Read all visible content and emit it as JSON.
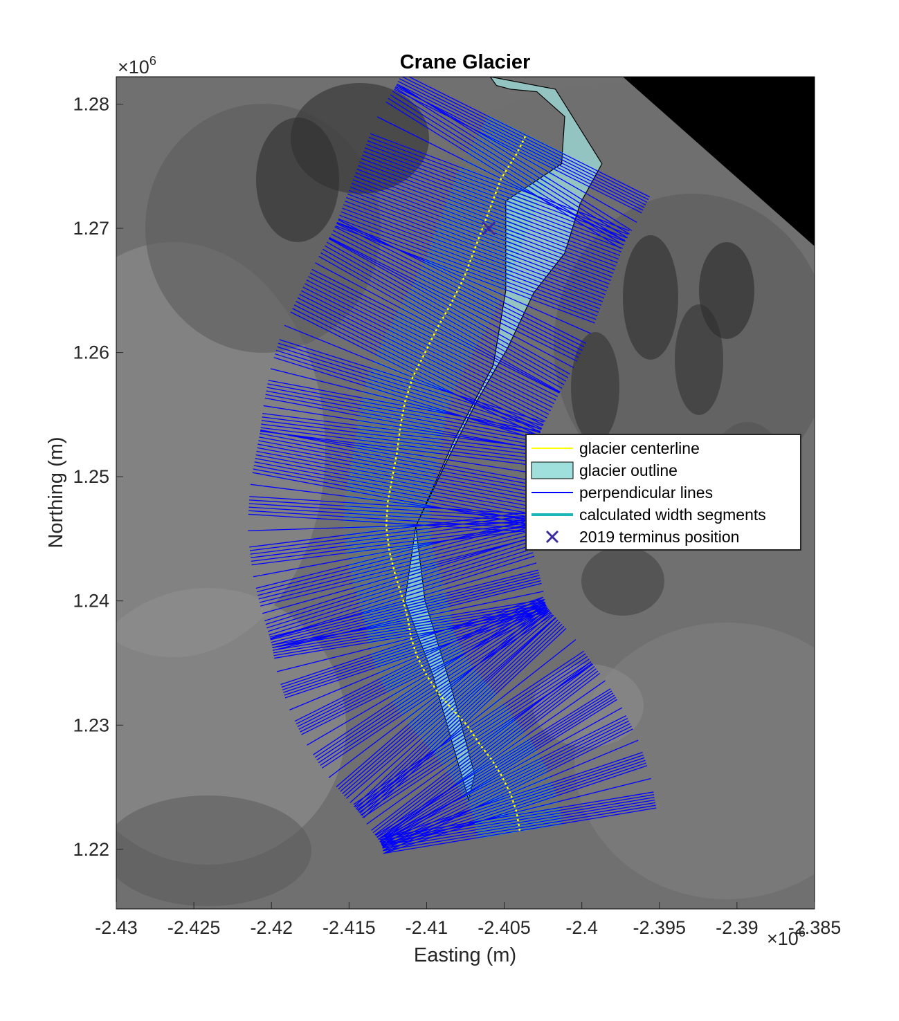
{
  "chart_data": {
    "type": "map",
    "title": "Crane Glacier",
    "xlabel": "Easting (m)",
    "ylabel": "Northing (m)",
    "x_exponent_label": "×10",
    "x_exponent": "6",
    "y_exponent_label": "×10",
    "y_exponent": "6",
    "xlim": [
      -2430000.0,
      -2385000.0
    ],
    "ylim": [
      1215200.0,
      1282200.0
    ],
    "x_ticks": [
      -2430000.0,
      -2425000.0,
      -2420000.0,
      -2415000.0,
      -2410000.0,
      -2405000.0,
      -2400000.0,
      -2395000.0,
      -2390000.0,
      -2385000.0
    ],
    "x_tick_labels": [
      "-2.43",
      "-2.425",
      "-2.42",
      "-2.415",
      "-2.41",
      "-2.405",
      "-2.4",
      "-2.395",
      "-2.39",
      "-2.385"
    ],
    "y_ticks": [
      1220000.0,
      1230000.0,
      1240000.0,
      1250000.0,
      1260000.0,
      1270000.0,
      1280000.0
    ],
    "y_tick_labels": [
      "1.22",
      "1.23",
      "1.24",
      "1.25",
      "1.26",
      "1.27",
      "1.28"
    ],
    "background": "grayscale satellite image",
    "colors": {
      "centerline": "#ffff00",
      "outline_fill": "#9fe0dc",
      "outline_edge": "#000000",
      "perpendicular": "#0000ff",
      "width_segments": "#1ab8b8",
      "terminus_marker": "#3a2aa0"
    },
    "centerline": {
      "x": [
        -2.404,
        -2.4042,
        -2.4046,
        -2.4052,
        -2.4058,
        -2.4066,
        -2.4074,
        -2.4083,
        -2.4092,
        -2.41,
        -2.4106,
        -2.411,
        -2.4112,
        -2.4115,
        -2.412,
        -2.4124,
        -2.4126,
        -2.4125,
        -2.4122,
        -2.4119,
        -2.4117,
        -2.4114,
        -2.4109,
        -2.4101,
        -2.4093,
        -2.4084,
        -2.4076,
        -2.407,
        -2.4064,
        -2.4058,
        -2.4052,
        -2.4042,
        -2.4036
      ],
      "y": [
        1.2215,
        1.223,
        1.2245,
        1.226,
        1.2272,
        1.2285,
        1.23,
        1.2312,
        1.2325,
        1.234,
        1.2355,
        1.237,
        1.2385,
        1.24,
        1.242,
        1.244,
        1.246,
        1.248,
        1.25,
        1.252,
        1.254,
        1.256,
        1.258,
        1.26,
        1.262,
        1.264,
        1.266,
        1.268,
        1.27,
        1.272,
        1.274,
        1.276,
        1.2775
      ]
    },
    "outline": {
      "x": [
        -2.4059,
        -2.4017,
        -2.3987,
        -2.4001,
        -2.4011,
        -2.4031,
        -2.4048,
        -2.4068,
        -2.4088,
        -2.4107,
        -2.4101,
        -2.4084,
        -2.4069,
        -2.4073,
        -2.4096,
        -2.4114,
        -2.4107,
        -2.4082,
        -2.4057,
        -2.4049,
        -2.4049,
        -2.4013,
        -2.4011,
        -2.4029,
        -2.4046,
        -2.4055,
        -2.4059
      ],
      "y": [
        1.2822,
        1.2812,
        1.2752,
        1.272,
        1.268,
        1.2648,
        1.2603,
        1.256,
        1.251,
        1.246,
        1.24,
        1.233,
        1.226,
        1.224,
        1.234,
        1.24,
        1.246,
        1.253,
        1.259,
        1.265,
        1.2722,
        1.2752,
        1.279,
        1.281,
        1.2812,
        1.2815,
        1.2822
      ]
    },
    "terminus_2019": {
      "x": -2.406,
      "y": 1.27
    },
    "legend": {
      "location": "right",
      "entries": [
        {
          "label": "glacier centerline",
          "style": "line",
          "color": "#ffff00"
        },
        {
          "label": "glacier outline",
          "style": "patch",
          "color": "#9fe0dc"
        },
        {
          "label": "perpendicular lines",
          "style": "line",
          "color": "#0000ff"
        },
        {
          "label": "calculated width segments",
          "style": "thick-line",
          "color": "#1ab8b8"
        },
        {
          "label": "2019 terminus position",
          "style": "marker-x",
          "color": "#3a2aa0"
        }
      ]
    },
    "grid": false
  }
}
